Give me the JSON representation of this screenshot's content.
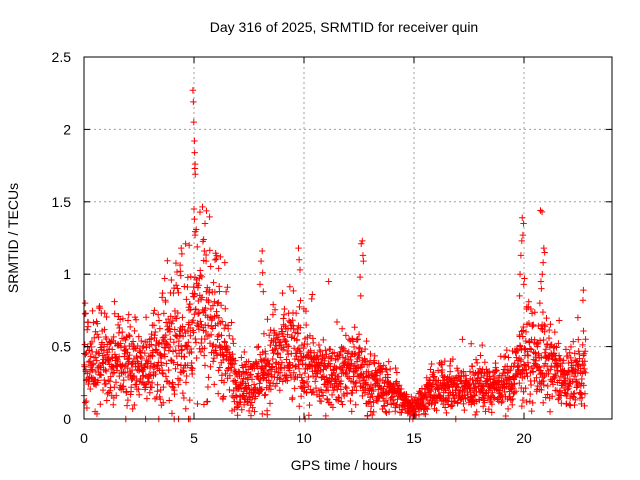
{
  "chart_data": {
    "type": "scatter",
    "title": "Day 316 of 2025, SRMTID for receiver quin",
    "xlabel": "GPS time / hours",
    "ylabel": "SRMTID / TECUs",
    "xlim": [
      0,
      24
    ],
    "ylim": [
      0,
      2.5
    ],
    "x_ticks": [
      "0",
      "5",
      "10",
      "15",
      "20"
    ],
    "y_ticks": [
      "0",
      "0.5",
      "1",
      "1.5",
      "2",
      "2.5"
    ],
    "grid": true,
    "marker": "plus",
    "color": "#ff0000",
    "envelope": [
      [
        0.0,
        0.42
      ],
      [
        0.5,
        0.4
      ],
      [
        1.0,
        0.38
      ],
      [
        1.5,
        0.4
      ],
      [
        2.0,
        0.37
      ],
      [
        2.5,
        0.33
      ],
      [
        3.0,
        0.36
      ],
      [
        3.5,
        0.48
      ],
      [
        4.0,
        0.55
      ],
      [
        4.5,
        0.5
      ],
      [
        5.0,
        0.68
      ],
      [
        5.5,
        0.72
      ],
      [
        6.0,
        0.62
      ],
      [
        6.5,
        0.42
      ],
      [
        7.0,
        0.26
      ],
      [
        7.5,
        0.22
      ],
      [
        8.0,
        0.28
      ],
      [
        8.5,
        0.38
      ],
      [
        9.0,
        0.42
      ],
      [
        9.5,
        0.45
      ],
      [
        10.0,
        0.4
      ],
      [
        10.5,
        0.33
      ],
      [
        11.0,
        0.28
      ],
      [
        11.5,
        0.3
      ],
      [
        12.0,
        0.35
      ],
      [
        12.5,
        0.33
      ],
      [
        13.0,
        0.25
      ],
      [
        13.5,
        0.22
      ],
      [
        14.0,
        0.2
      ],
      [
        14.5,
        0.12
      ],
      [
        15.0,
        0.08
      ],
      [
        15.5,
        0.14
      ],
      [
        16.0,
        0.2
      ],
      [
        16.5,
        0.22
      ],
      [
        17.0,
        0.2
      ],
      [
        17.5,
        0.2
      ],
      [
        18.0,
        0.24
      ],
      [
        18.5,
        0.22
      ],
      [
        19.0,
        0.22
      ],
      [
        19.5,
        0.26
      ],
      [
        20.0,
        0.42
      ],
      [
        20.5,
        0.4
      ],
      [
        21.0,
        0.38
      ],
      [
        21.5,
        0.32
      ],
      [
        22.0,
        0.24
      ],
      [
        22.5,
        0.3
      ],
      [
        22.8,
        0.33
      ]
    ],
    "highlights": [
      [
        4.95,
        2.27
      ],
      [
        4.97,
        2.19
      ],
      [
        4.99,
        2.05
      ],
      [
        5.02,
        1.92
      ],
      [
        5.03,
        1.84
      ],
      [
        5.05,
        1.76
      ],
      [
        5.04,
        1.73
      ],
      [
        5.06,
        1.69
      ],
      [
        5.0,
        1.45
      ],
      [
        5.02,
        1.38
      ],
      [
        5.05,
        1.27
      ],
      [
        4.78,
        1.2
      ],
      [
        4.62,
        1.21
      ],
      [
        4.42,
        1.18
      ],
      [
        4.45,
        1.14
      ],
      [
        4.4,
        0.99
      ],
      [
        4.38,
        1.02
      ],
      [
        5.5,
        1.35
      ],
      [
        5.44,
        1.24
      ],
      [
        5.47,
        1.16
      ],
      [
        5.55,
        1.09
      ],
      [
        6.2,
        1.12
      ],
      [
        6.12,
        1.04
      ],
      [
        6.4,
        1.08
      ],
      [
        6.52,
        0.91
      ],
      [
        8.1,
        1.16
      ],
      [
        8.05,
        1.09
      ],
      [
        8.12,
        1.01
      ],
      [
        8.0,
        0.93
      ],
      [
        8.15,
        0.88
      ],
      [
        9.75,
        1.18
      ],
      [
        9.78,
        1.1
      ],
      [
        9.82,
        1.03
      ],
      [
        10.38,
        0.86
      ],
      [
        10.35,
        0.83
      ],
      [
        11.12,
        0.95
      ],
      [
        12.65,
        1.23
      ],
      [
        12.6,
        1.21
      ],
      [
        12.68,
        1.13
      ],
      [
        12.7,
        1.09
      ],
      [
        12.55,
        0.98
      ],
      [
        12.58,
        0.85
      ],
      [
        19.92,
        1.39
      ],
      [
        19.98,
        1.35
      ],
      [
        19.95,
        1.27
      ],
      [
        19.9,
        1.23
      ],
      [
        19.86,
        1.13
      ],
      [
        19.82,
        1.0
      ],
      [
        20.02,
        0.97
      ],
      [
        19.99,
        0.93
      ],
      [
        19.8,
        0.85
      ],
      [
        20.12,
        0.76
      ],
      [
        20.75,
        1.44
      ],
      [
        20.82,
        1.43
      ],
      [
        20.9,
        1.18
      ],
      [
        20.94,
        1.15
      ],
      [
        20.87,
        1.08
      ],
      [
        20.83,
        1.0
      ],
      [
        20.77,
        0.95
      ],
      [
        20.79,
        0.9
      ],
      [
        20.72,
        0.8
      ],
      [
        22.7,
        0.89
      ],
      [
        22.68,
        0.82
      ],
      [
        22.45,
        0.7
      ],
      [
        21.6,
        0.68
      ],
      [
        21.4,
        0.6
      ],
      [
        3.2,
        0.75
      ],
      [
        3.55,
        0.84
      ],
      [
        3.7,
        0.82
      ],
      [
        2.0,
        0.68
      ],
      [
        0.05,
        0.8
      ],
      [
        0.08,
        0.73
      ],
      [
        1.55,
        0.65
      ],
      [
        8.6,
        0.79
      ],
      [
        9.3,
        0.73
      ],
      [
        11.5,
        0.67
      ],
      [
        12.2,
        0.55
      ],
      [
        17.2,
        0.55
      ],
      [
        17.6,
        0.52
      ],
      [
        18.1,
        0.51
      ],
      [
        16.4,
        0.4
      ],
      [
        15.8,
        0.38
      ]
    ],
    "zero_points": [
      [
        1.9,
        0.0
      ],
      [
        2.8,
        0.0
      ],
      [
        3.4,
        0.0
      ],
      [
        4.1,
        0.0
      ],
      [
        4.3,
        0.0
      ],
      [
        4.75,
        0.0
      ],
      [
        4.82,
        0.0
      ],
      [
        9.8,
        0.0
      ],
      [
        10.05,
        0.0
      ],
      [
        14.8,
        0.0
      ],
      [
        14.95,
        0.0
      ],
      [
        16.9,
        0.0
      ]
    ]
  }
}
